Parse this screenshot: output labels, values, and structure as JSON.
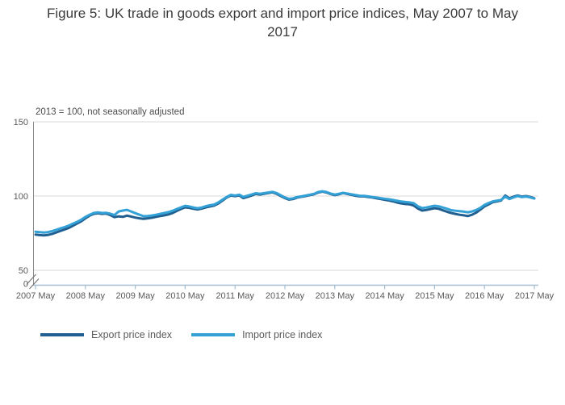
{
  "title": "Figure 5: UK trade in goods export and import price indices, May 2007 to May 2017",
  "subtitle": "2013 = 100, not seasonally adjusted",
  "legend": [
    {
      "label": "Export price index",
      "color": "#205f8f"
    },
    {
      "label": "Import price index",
      "color": "#33a1d6"
    }
  ],
  "colors": {
    "gridline": "#d9d9d9",
    "y_axis_line": "#8c8c8c",
    "x_axis_line": "#a5bdd1",
    "tick_mark": "#a5bdd1",
    "axis_break_mark": "#777777",
    "label_text": "#5a5a5a"
  },
  "chart_data": {
    "type": "line",
    "title": "Figure 5: UK trade in goods export and import price indices, May 2007 to May 2017",
    "subtitle": "2013 = 100, not seasonally adjusted",
    "frequency": "monthly",
    "x_start": "2007 May",
    "x_end": "2017 May",
    "x_tick_labels": [
      "2007 May",
      "2008 May",
      "2009 May",
      "2010 May",
      "2011 May",
      "2012 May",
      "2013 May",
      "2014 May",
      "2015 May",
      "2016 May",
      "2017 May"
    ],
    "y_ticks": [
      0,
      50,
      100,
      150
    ],
    "ylim": [
      0,
      150
    ],
    "y_axis_break": "between 0 and 50",
    "grid": "horizontal only",
    "legend_position": "bottom-left",
    "series": [
      {
        "name": "Export price index",
        "color": "#205f8f",
        "values": [
          74,
          73.7,
          73.5,
          73.8,
          74.5,
          75.5,
          76.5,
          77.5,
          78.5,
          80,
          81.5,
          83,
          85,
          86.8,
          88,
          88.4,
          88,
          88.2,
          87.2,
          85.8,
          86.3,
          86,
          86.8,
          86.2,
          85.5,
          85,
          84.7,
          85,
          85.4,
          86,
          86.5,
          87,
          87.6,
          88.6,
          90,
          91.3,
          92.4,
          92,
          91.4,
          91,
          91.6,
          92.4,
          93,
          93.6,
          95,
          97,
          99,
          100.3,
          99.9,
          100.4,
          98.6,
          99.4,
          100.4,
          101.4,
          101,
          101.5,
          102,
          102.5,
          101.5,
          100,
          98.6,
          97.6,
          98,
          99,
          99.5,
          100,
          100.6,
          101.2,
          102.4,
          103,
          102.4,
          101.4,
          100.6,
          101.2,
          102,
          101.4,
          100.8,
          100.2,
          99.8,
          99.8,
          99.4,
          99,
          98.5,
          98,
          97.5,
          97,
          96.4,
          95.6,
          95,
          94.6,
          94.4,
          93.6,
          91.6,
          90.2,
          90.6,
          91.2,
          91.8,
          91.4,
          90.4,
          89.4,
          88.6,
          88,
          87.4,
          87,
          86.5,
          87.4,
          88.8,
          90.8,
          93,
          94.4,
          95.8,
          96.4,
          97,
          100.4,
          98.4,
          99.6,
          100.4,
          99.6,
          100,
          99.4,
          98.5
        ]
      },
      {
        "name": "Import price index",
        "color": "#33a1d6",
        "values": [
          76,
          75.7,
          75.4,
          75.7,
          76.4,
          77.3,
          78.2,
          79.1,
          80.1,
          81.4,
          82.6,
          84.1,
          85.9,
          87.4,
          88.6,
          89,
          88.6,
          88.7,
          88.1,
          87.2,
          89.6,
          90.2,
          90.7,
          89.6,
          88.5,
          87.4,
          86.4,
          86.6,
          86.9,
          87.4,
          88,
          88.6,
          89.2,
          90.1,
          91.3,
          92.4,
          93.4,
          93,
          92.3,
          91.8,
          92.3,
          93.2,
          93.8,
          94.3,
          95.7,
          97.6,
          99.4,
          100.8,
          100.4,
          100.9,
          99.4,
          100.2,
          101.1,
          101.9,
          101.5,
          102,
          102.4,
          102.8,
          102,
          100.5,
          99.1,
          98.1,
          98.5,
          99.4,
          99.8,
          100.3,
          100.9,
          101.5,
          102.7,
          103.2,
          102.7,
          101.7,
          101,
          101.5,
          102.2,
          101.7,
          101.2,
          100.7,
          100.2,
          100.1,
          99.8,
          99.4,
          99,
          98.6,
          98.2,
          97.8,
          97.4,
          96.8,
          96.3,
          96,
          95.7,
          95.2,
          93.1,
          91.9,
          92.3,
          92.9,
          93.5,
          93.1,
          92.3,
          91.4,
          90.5,
          90.1,
          89.8,
          89.5,
          89.1,
          89.6,
          90.6,
          92,
          94,
          95.3,
          96.4,
          96.9,
          97.4,
          99.6,
          98,
          99.1,
          100,
          99.3,
          99.7,
          99.1,
          98.3
        ]
      }
    ]
  }
}
